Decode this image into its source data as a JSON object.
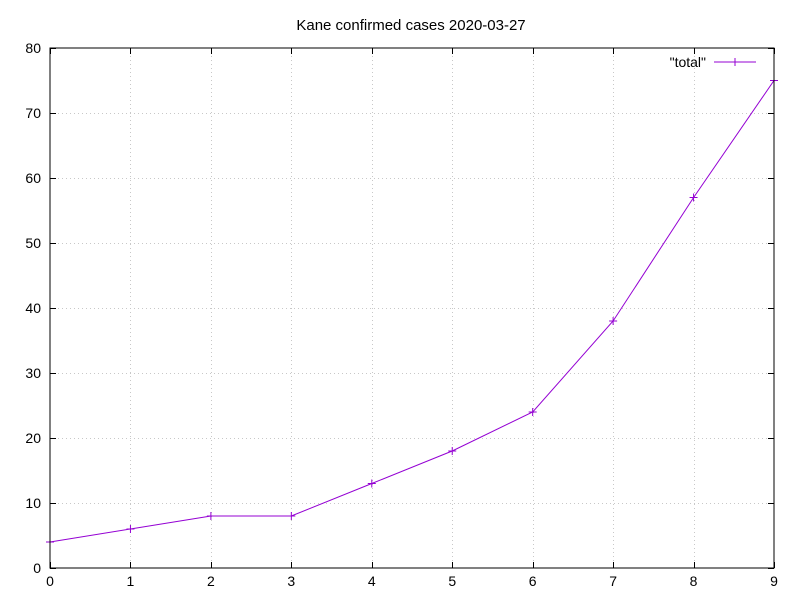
{
  "chart_data": {
    "type": "line",
    "title": "Kane confirmed cases 2020-03-27",
    "xlabel": "",
    "ylabel": "",
    "xlim": [
      0,
      9
    ],
    "ylim": [
      0,
      80
    ],
    "x_ticks": [
      0,
      1,
      2,
      3,
      4,
      5,
      6,
      7,
      8,
      9
    ],
    "y_ticks": [
      0,
      10,
      20,
      30,
      40,
      50,
      60,
      70,
      80
    ],
    "grid": true,
    "legend_position": "top-right",
    "series": [
      {
        "name": "\"total\"",
        "color": "#9400d3",
        "marker": "plus",
        "x": [
          0,
          1,
          2,
          3,
          4,
          5,
          6,
          7,
          8,
          9
        ],
        "y": [
          4,
          6,
          8,
          8,
          13,
          18,
          24,
          38,
          57,
          75
        ]
      }
    ]
  }
}
